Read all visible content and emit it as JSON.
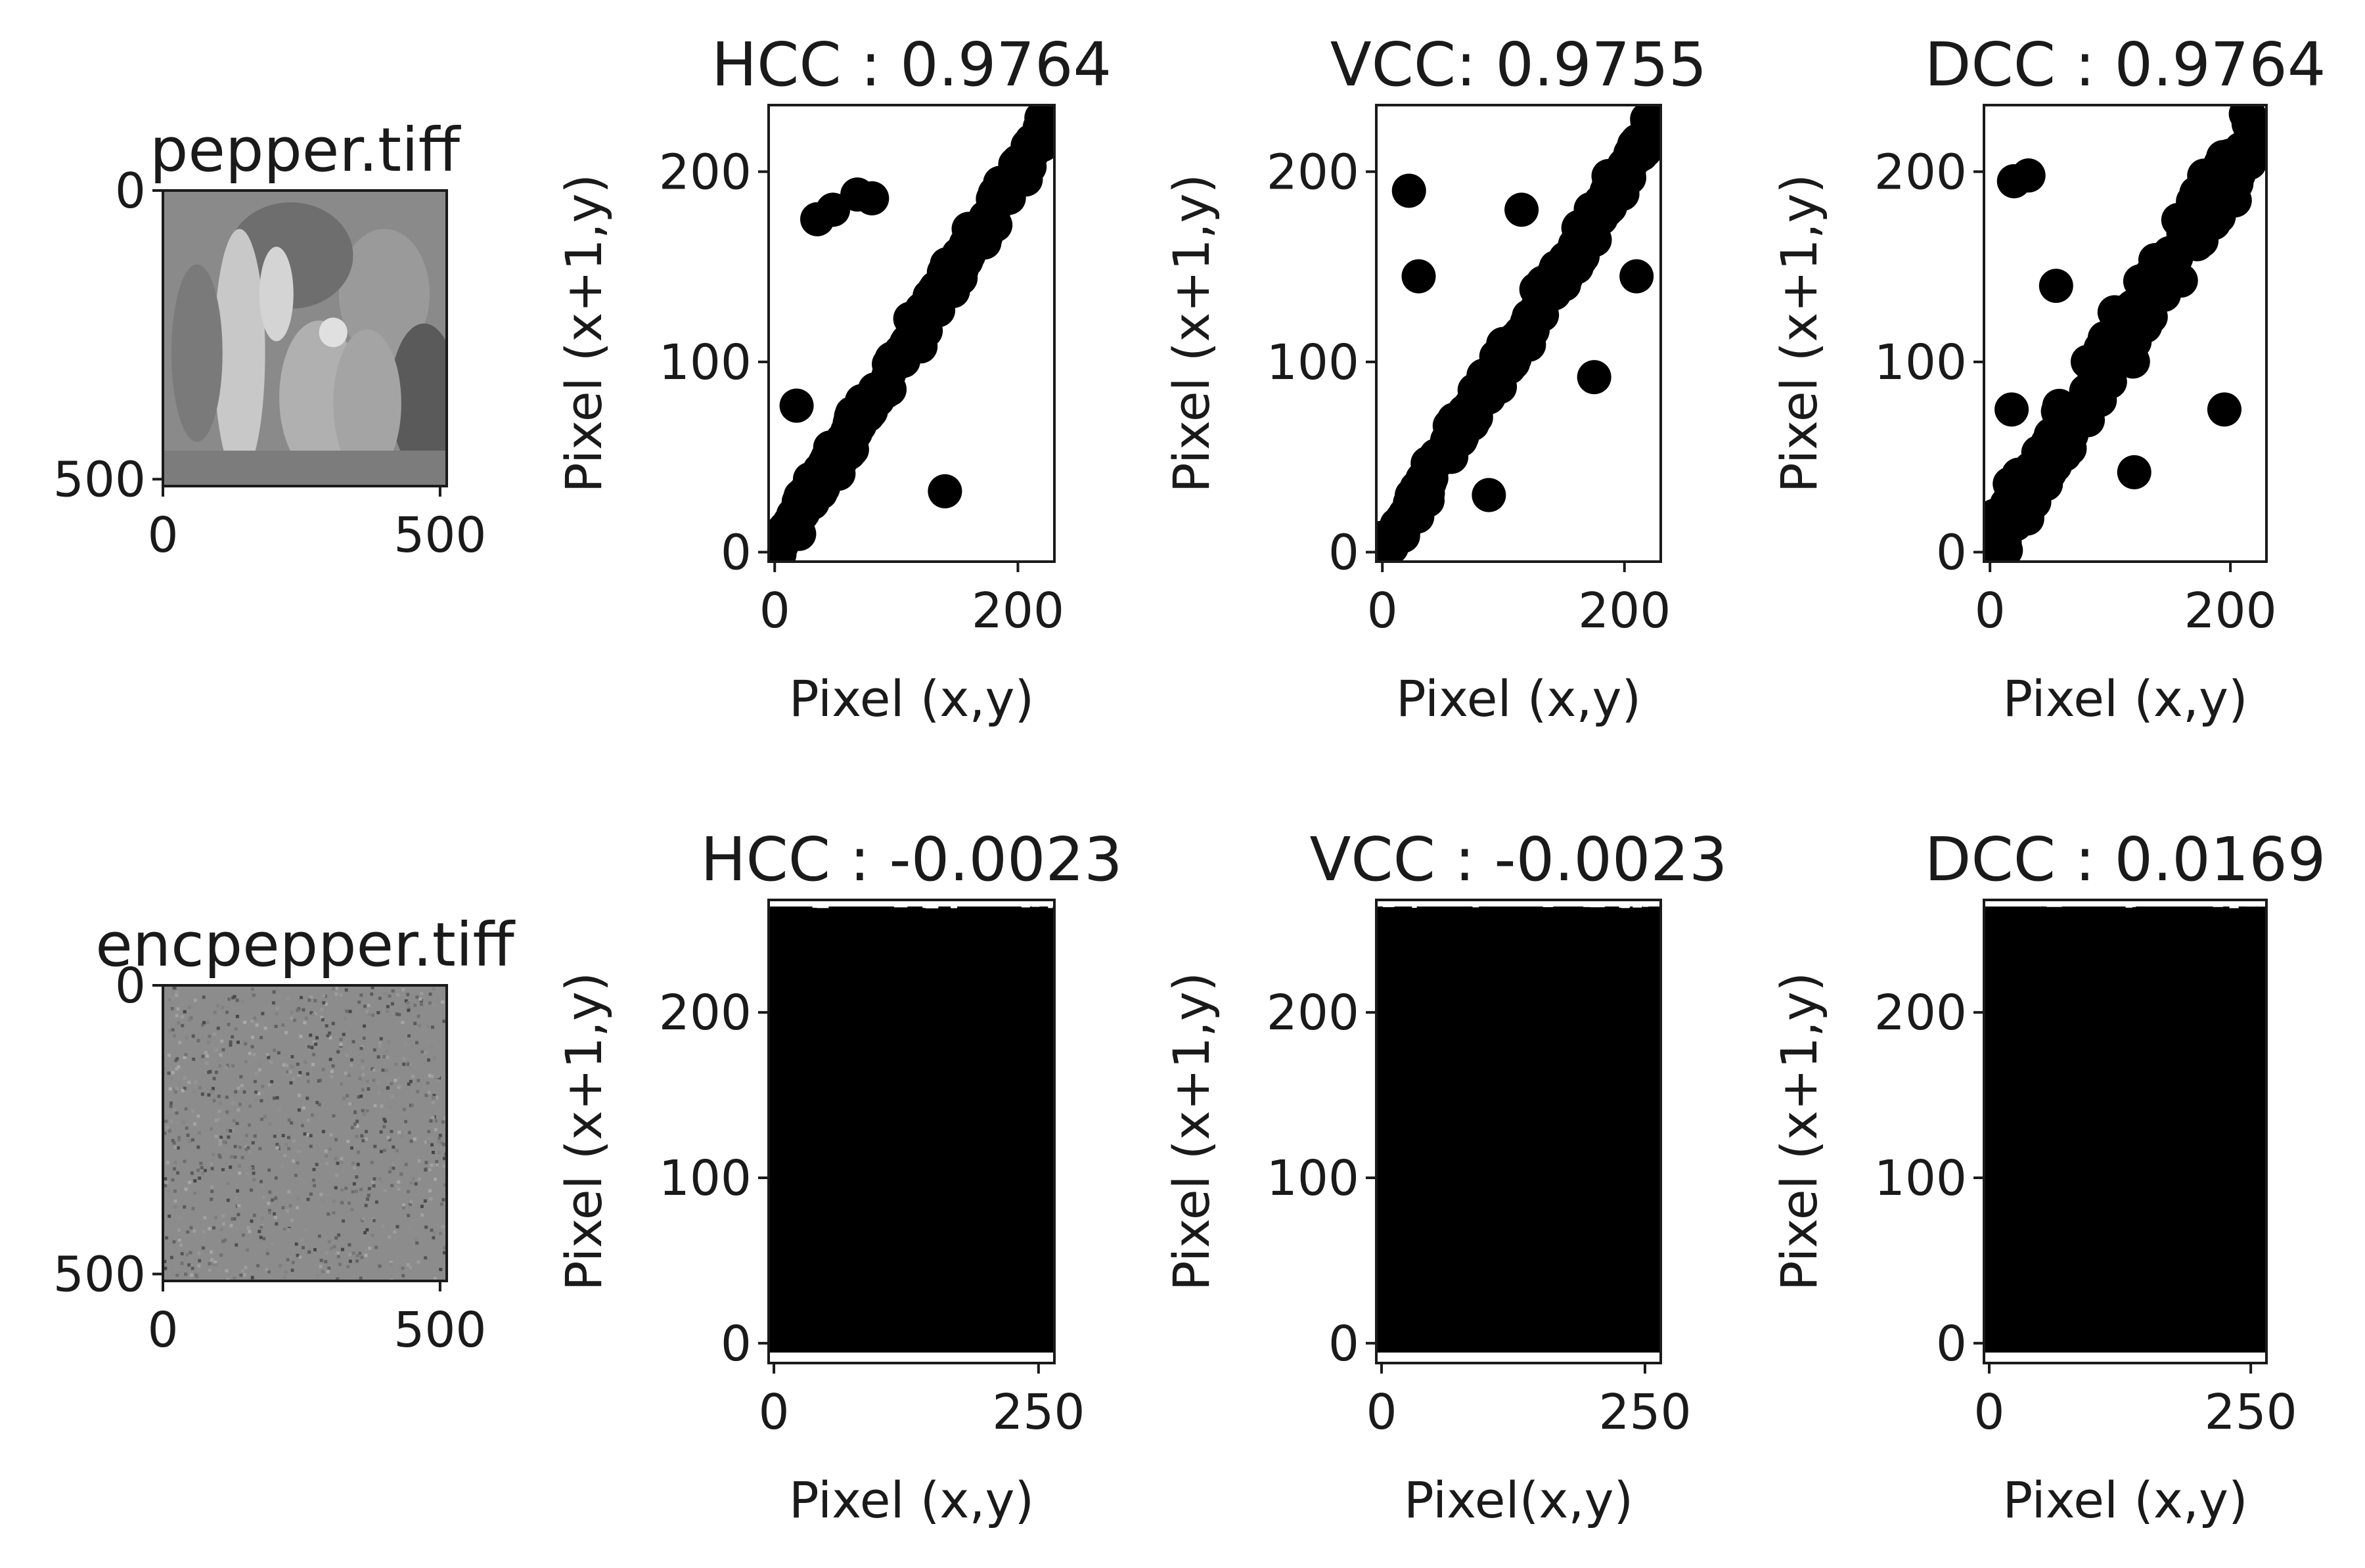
{
  "figure": {
    "description": "Correlation analysis grid: original vs encrypted image, adjacent pixel scatter plots"
  },
  "chart_data": [
    {
      "type": "image",
      "title": "pepper.tiff",
      "xticks": [
        "0",
        "500"
      ],
      "yticks": [
        "0",
        "500"
      ],
      "xlim": [
        0,
        512
      ],
      "ylim": [
        0,
        512
      ],
      "colors": {
        "bg": "#8a8a8a"
      }
    },
    {
      "type": "scatter",
      "title": "HCC :  0.9764",
      "metric": "HCC",
      "coefficient": 0.9764,
      "xlabel": "Pixel (x,y)",
      "ylabel": "Pixel (x+1,y)",
      "xticks": [
        "0",
        "200"
      ],
      "yticks": [
        "0",
        "100",
        "200"
      ],
      "xlim": [
        -5,
        230
      ],
      "ylim": [
        -5,
        235
      ],
      "pattern": "diagonal",
      "outliers": [
        [
          35,
          175
        ],
        [
          48,
          180
        ],
        [
          68,
          188
        ],
        [
          80,
          186
        ],
        [
          140,
          32
        ],
        [
          18,
          77
        ]
      ]
    },
    {
      "type": "scatter",
      "title": "VCC: 0.9755",
      "metric": "VCC",
      "coefficient": 0.9755,
      "xlabel": "Pixel (x,y)",
      "ylabel": "Pixel (x+1,y)",
      "xticks": [
        "0",
        "200"
      ],
      "yticks": [
        "0",
        "100",
        "200"
      ],
      "xlim": [
        -5,
        230
      ],
      "ylim": [
        -5,
        235
      ],
      "pattern": "diagonal",
      "outliers": [
        [
          22,
          190
        ],
        [
          30,
          145
        ],
        [
          210,
          145
        ],
        [
          175,
          92
        ],
        [
          88,
          30
        ],
        [
          115,
          180
        ]
      ]
    },
    {
      "type": "scatter",
      "title": "DCC :  0.9764",
      "metric": "DCC",
      "coefficient": 0.9764,
      "xlabel": "Pixel (x,y)",
      "ylabel": "Pixel (x+1,y)",
      "xticks": [
        "0",
        "200"
      ],
      "yticks": [
        "0",
        "100",
        "200"
      ],
      "xlim": [
        -5,
        230
      ],
      "ylim": [
        -5,
        235
      ],
      "pattern": "diagonal-wide",
      "outliers": [
        [
          20,
          195
        ],
        [
          32,
          198
        ],
        [
          195,
          75
        ],
        [
          120,
          42
        ],
        [
          55,
          140
        ],
        [
          18,
          75
        ]
      ]
    },
    {
      "type": "image",
      "title": "encpepper.tiff",
      "xticks": [
        "0",
        "500"
      ],
      "yticks": [
        "0",
        "500"
      ],
      "xlim": [
        0,
        512
      ],
      "ylim": [
        0,
        512
      ],
      "colors": {
        "bg": "#8c8c8c"
      }
    },
    {
      "type": "scatter",
      "title": "HCC :  -0.0023",
      "metric": "HCC",
      "coefficient": -0.0023,
      "xlabel": "Pixel (x,y)",
      "ylabel": "Pixel (x+1,y)",
      "xticks": [
        "0",
        "250"
      ],
      "yticks": [
        "0",
        "100",
        "200"
      ],
      "xlim": [
        -5,
        265
      ],
      "ylim": [
        -12,
        268
      ],
      "pattern": "uniform"
    },
    {
      "type": "scatter",
      "title": "VCC :  -0.0023",
      "metric": "VCC",
      "coefficient": -0.0023,
      "xlabel": "Pixel(x,y)",
      "ylabel": "Pixel (x+1,y)",
      "xticks": [
        "0",
        "250"
      ],
      "yticks": [
        "0",
        "100",
        "200"
      ],
      "xlim": [
        -5,
        265
      ],
      "ylim": [
        -12,
        268
      ],
      "pattern": "uniform"
    },
    {
      "type": "scatter",
      "title": "DCC :  0.0169",
      "metric": "DCC",
      "coefficient": 0.0169,
      "xlabel": "Pixel (x,y)",
      "ylabel": "Pixel (x+1,y)",
      "xticks": [
        "0",
        "250"
      ],
      "yticks": [
        "0",
        "100",
        "200"
      ],
      "xlim": [
        -5,
        265
      ],
      "ylim": [
        -12,
        268
      ],
      "pattern": "uniform"
    }
  ]
}
